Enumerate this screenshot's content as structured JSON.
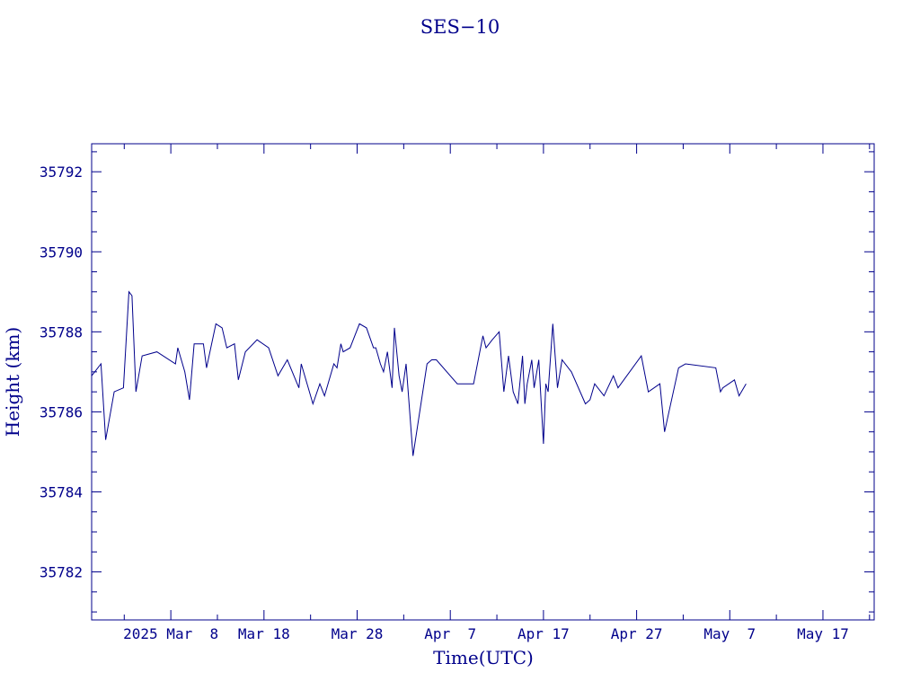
{
  "chart_data": {
    "type": "line",
    "title": "SES−10",
    "xlabel": "Time(UTC)",
    "ylabel": "Height (km)",
    "x_tick_labels": [
      "2025 Mar  8",
      "Mar 18",
      "Mar 28",
      "Apr  7",
      "Apr 17",
      "Apr 27",
      "May  7",
      "May 17"
    ],
    "x_tick_values": [
      "2025-03-08",
      "2025-03-18",
      "2025-03-28",
      "2025-04-07",
      "2025-04-17",
      "2025-04-27",
      "2025-05-07",
      "2025-05-17"
    ],
    "xlim": [
      "2025-02-27T12:00",
      "2025-05-22T12:00"
    ],
    "y_tick_labels": [
      "35782",
      "35784",
      "35786",
      "35788",
      "35790",
      "35792"
    ],
    "y_tick_values": [
      35782,
      35784,
      35786,
      35788,
      35790,
      35792
    ],
    "ylim": [
      35780.8,
      35792.7
    ],
    "grid": false,
    "color": "#00008b",
    "series": [
      {
        "points": [
          [
            "2025-02-27T12:00",
            35786.9
          ],
          [
            "2025-02-28T12:00",
            35787.2
          ],
          [
            "2025-03-01T00:00",
            35785.3
          ],
          [
            "2025-03-01T22:00",
            35786.5
          ],
          [
            "2025-03-02T22:00",
            35786.6
          ],
          [
            "2025-03-03T12:00",
            35789.0
          ],
          [
            "2025-03-03T20:00",
            35788.9
          ],
          [
            "2025-03-04T06:00",
            35786.5
          ],
          [
            "2025-03-04T22:00",
            35787.4
          ],
          [
            "2025-03-06T12:00",
            35787.5
          ],
          [
            "2025-03-08T12:00",
            35787.2
          ],
          [
            "2025-03-08T18:00",
            35787.6
          ],
          [
            "2025-03-09T12:00",
            35787.0
          ],
          [
            "2025-03-10T00:00",
            35786.3
          ],
          [
            "2025-03-10T12:00",
            35787.7
          ],
          [
            "2025-03-11T12:00",
            35787.7
          ],
          [
            "2025-03-11T20:00",
            35787.1
          ],
          [
            "2025-03-12T20:00",
            35788.2
          ],
          [
            "2025-03-13T12:00",
            35788.1
          ],
          [
            "2025-03-14T00:00",
            35787.6
          ],
          [
            "2025-03-14T20:00",
            35787.7
          ],
          [
            "2025-03-15T06:00",
            35786.8
          ],
          [
            "2025-03-16T00:00",
            35787.5
          ],
          [
            "2025-03-17T06:00",
            35787.8
          ],
          [
            "2025-03-18T12:00",
            35787.6
          ],
          [
            "2025-03-19T12:00",
            35786.9
          ],
          [
            "2025-03-20T12:00",
            35787.3
          ],
          [
            "2025-03-21T18:00",
            35786.6
          ],
          [
            "2025-03-22T00:00",
            35787.2
          ],
          [
            "2025-03-23T06:00",
            35786.2
          ],
          [
            "2025-03-24T00:00",
            35786.7
          ],
          [
            "2025-03-24T12:00",
            35786.4
          ],
          [
            "2025-03-25T12:00",
            35787.2
          ],
          [
            "2025-03-25T20:00",
            35787.1
          ],
          [
            "2025-03-26T06:00",
            35787.7
          ],
          [
            "2025-03-26T12:00",
            35787.5
          ],
          [
            "2025-03-27T06:00",
            35787.6
          ],
          [
            "2025-03-28T06:00",
            35788.2
          ],
          [
            "2025-03-29T00:00",
            35788.1
          ],
          [
            "2025-03-29T18:00",
            35787.6
          ],
          [
            "2025-03-30T00:00",
            35787.6
          ],
          [
            "2025-03-30T12:00",
            35787.2
          ],
          [
            "2025-03-30T20:00",
            35787.0
          ],
          [
            "2025-03-31T06:00",
            35787.5
          ],
          [
            "2025-03-31T18:00",
            35786.6
          ],
          [
            "2025-04-01T00:00",
            35788.1
          ],
          [
            "2025-04-01T12:00",
            35786.9
          ],
          [
            "2025-04-01T20:00",
            35786.5
          ],
          [
            "2025-04-02T06:00",
            35787.2
          ],
          [
            "2025-04-03T00:00",
            35784.9
          ],
          [
            "2025-04-04T12:00",
            35787.2
          ],
          [
            "2025-04-05T00:00",
            35787.3
          ],
          [
            "2025-04-05T12:00",
            35787.3
          ],
          [
            "2025-04-07T18:00",
            35786.7
          ],
          [
            "2025-04-09T12:00",
            35786.7
          ],
          [
            "2025-04-10T12:00",
            35787.9
          ],
          [
            "2025-04-10T20:00",
            35787.6
          ],
          [
            "2025-04-11T12:00",
            35787.8
          ],
          [
            "2025-04-12T06:00",
            35788.0
          ],
          [
            "2025-04-12T18:00",
            35786.5
          ],
          [
            "2025-04-13T06:00",
            35787.4
          ],
          [
            "2025-04-13T18:00",
            35786.5
          ],
          [
            "2025-04-14T06:00",
            35786.2
          ],
          [
            "2025-04-14T18:00",
            35787.4
          ],
          [
            "2025-04-15T00:00",
            35786.2
          ],
          [
            "2025-04-15T06:00",
            35786.7
          ],
          [
            "2025-04-15T18:00",
            35787.3
          ],
          [
            "2025-04-16T00:00",
            35786.6
          ],
          [
            "2025-04-16T12:00",
            35787.3
          ],
          [
            "2025-04-17T00:00",
            35785.2
          ],
          [
            "2025-04-17T06:00",
            35786.7
          ],
          [
            "2025-04-17T12:00",
            35786.5
          ],
          [
            "2025-04-18T00:00",
            35788.2
          ],
          [
            "2025-04-18T12:00",
            35786.6
          ],
          [
            "2025-04-19T00:00",
            35787.3
          ],
          [
            "2025-04-20T00:00",
            35787.0
          ],
          [
            "2025-04-21T12:00",
            35786.2
          ],
          [
            "2025-04-22T00:00",
            35786.3
          ],
          [
            "2025-04-22T12:00",
            35786.7
          ],
          [
            "2025-04-23T12:00",
            35786.4
          ],
          [
            "2025-04-24T12:00",
            35786.9
          ],
          [
            "2025-04-25T00:00",
            35786.6
          ],
          [
            "2025-04-27T12:00",
            35787.4
          ],
          [
            "2025-04-28T06:00",
            35786.5
          ],
          [
            "2025-04-29T12:00",
            35786.7
          ],
          [
            "2025-04-30T00:00",
            35785.5
          ],
          [
            "2025-05-01T12:00",
            35787.1
          ],
          [
            "2025-05-02T06:00",
            35787.2
          ],
          [
            "2025-05-05T12:00",
            35787.1
          ],
          [
            "2025-05-06T00:00",
            35786.5
          ],
          [
            "2025-05-06T06:00",
            35786.6
          ],
          [
            "2025-05-07T12:00",
            35786.8
          ],
          [
            "2025-05-08T00:00",
            35786.4
          ],
          [
            "2025-05-08T06:00",
            35786.5
          ],
          [
            "2025-05-08T18:00",
            35786.7
          ]
        ]
      }
    ]
  }
}
